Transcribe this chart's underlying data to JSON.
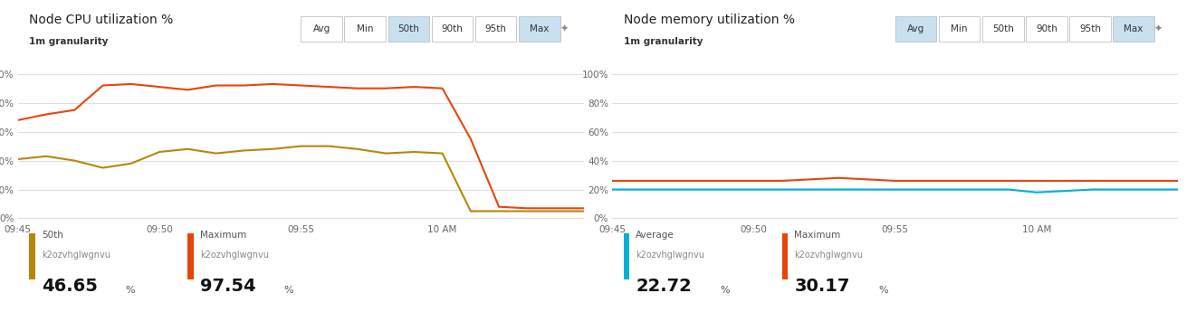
{
  "cpu_title": "Node CPU utilization %",
  "cpu_subtitle": "1m granularity",
  "mem_title": "Node memory utilization %",
  "mem_subtitle": "1m granularity",
  "buttons": [
    "Avg",
    "Min",
    "50th",
    "90th",
    "95th",
    "Max"
  ],
  "cpu_active_buttons": [
    "50th",
    "Max"
  ],
  "mem_active_buttons": [
    "Avg",
    "Max"
  ],
  "x_tick_positions": [
    0,
    5,
    10,
    15,
    20
  ],
  "x_tick_labels": [
    "09:45",
    "09:50",
    "09:55",
    "10 AM",
    ""
  ],
  "cpu_50th_x": [
    0,
    1,
    2,
    3,
    4,
    5,
    6,
    7,
    8,
    9,
    10,
    11,
    12,
    13,
    14,
    15,
    16,
    17,
    18,
    19,
    20
  ],
  "cpu_50th_y": [
    41,
    43,
    40,
    35,
    38,
    46,
    48,
    45,
    47,
    48,
    50,
    50,
    48,
    45,
    46,
    45,
    5,
    5,
    5,
    5,
    5
  ],
  "cpu_max_x": [
    0,
    1,
    2,
    3,
    4,
    5,
    6,
    7,
    8,
    9,
    10,
    11,
    12,
    13,
    14,
    15,
    16,
    17,
    18,
    19,
    20
  ],
  "cpu_max_y": [
    68,
    72,
    75,
    92,
    93,
    91,
    89,
    92,
    92,
    93,
    92,
    91,
    90,
    90,
    91,
    90,
    55,
    8,
    7,
    7,
    7
  ],
  "mem_avg_x": [
    0,
    1,
    2,
    3,
    4,
    5,
    6,
    7,
    8,
    9,
    10,
    11,
    12,
    13,
    14,
    15,
    16,
    17,
    18,
    19,
    20
  ],
  "mem_avg_y": [
    20,
    20,
    20,
    20,
    20,
    20,
    20,
    20,
    20,
    20,
    20,
    20,
    20,
    20,
    20,
    18,
    19,
    20,
    20,
    20,
    20
  ],
  "mem_max_x": [
    0,
    1,
    2,
    3,
    4,
    5,
    6,
    7,
    8,
    9,
    10,
    11,
    12,
    13,
    14,
    15,
    16,
    17,
    18,
    19,
    20
  ],
  "mem_max_y": [
    26,
    26,
    26,
    26,
    26,
    26,
    26,
    27,
    28,
    27,
    26,
    26,
    26,
    26,
    26,
    26,
    26,
    26,
    26,
    26,
    26
  ],
  "cpu_50th_color": "#b8860b",
  "cpu_max_color": "#e8450a",
  "mem_avg_color": "#00b0d8",
  "mem_max_color": "#e8450a",
  "yticks": [
    0,
    20,
    40,
    60,
    80,
    100
  ],
  "ytick_labels": [
    "0%",
    "20%",
    "40%",
    "60%",
    "80%",
    "100%"
  ],
  "grid_color": "#e0e0e0",
  "button_active_bg": "#c8e0f0",
  "button_inactive_bg": "#ffffff",
  "button_border": "#c0c0c0",
  "panel_border": "#d0d0d0",
  "cpu_legend": [
    {
      "label": "50th",
      "sub": "k2ozvhglwgnvu",
      "val": "46.65",
      "color": "#b8860b"
    },
    {
      "label": "Maximum",
      "sub": "k2ozvhglwgnvu",
      "val": "97.54",
      "color": "#e8450a"
    }
  ],
  "mem_legend": [
    {
      "label": "Average",
      "sub": "k2ozvhglwgnvu",
      "val": "22.72",
      "color": "#00b0d8"
    },
    {
      "label": "Maximum",
      "sub": "k2ozvhglwgnvu",
      "val": "30.17",
      "color": "#e8450a"
    }
  ]
}
